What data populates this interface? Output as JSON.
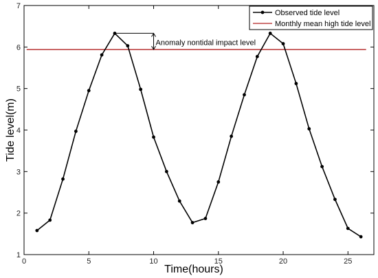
{
  "chart_data": {
    "type": "line",
    "xlabel": "Time(hours)",
    "ylabel": "Tide level(m)",
    "xlim": [
      0,
      27
    ],
    "ylim": [
      1,
      7
    ],
    "xticks": [
      "0",
      "5",
      "10",
      "15",
      "20",
      "25"
    ],
    "yticks": [
      "1",
      "2",
      "3",
      "4",
      "5",
      "6",
      "7"
    ],
    "grid": false,
    "legend_position": "top-right",
    "series": [
      {
        "name": "Observed tide level",
        "color": "#000000",
        "marker": "dot",
        "x": [
          1,
          2,
          3,
          4,
          5,
          6,
          7,
          8,
          9,
          10,
          11,
          12,
          13,
          14,
          15,
          16,
          17,
          18,
          19,
          20,
          21,
          22,
          23,
          24,
          25,
          26
        ],
        "y": [
          1.58,
          1.83,
          2.82,
          3.97,
          4.95,
          5.81,
          6.33,
          6.03,
          4.98,
          3.83,
          3.0,
          2.29,
          1.77,
          1.87,
          2.75,
          3.85,
          4.85,
          5.77,
          6.33,
          6.08,
          5.12,
          4.03,
          3.12,
          2.33,
          1.63,
          1.43
        ]
      },
      {
        "name": "Monthly mean high tide level",
        "color": "#b22222",
        "x": [
          0.2,
          26.4
        ],
        "y": [
          5.94,
          5.94
        ]
      }
    ],
    "annotations": [
      {
        "text": "Anomaly nontidal impact level",
        "x": 10,
        "y_low": 5.94,
        "y_high": 6.33
      }
    ]
  }
}
